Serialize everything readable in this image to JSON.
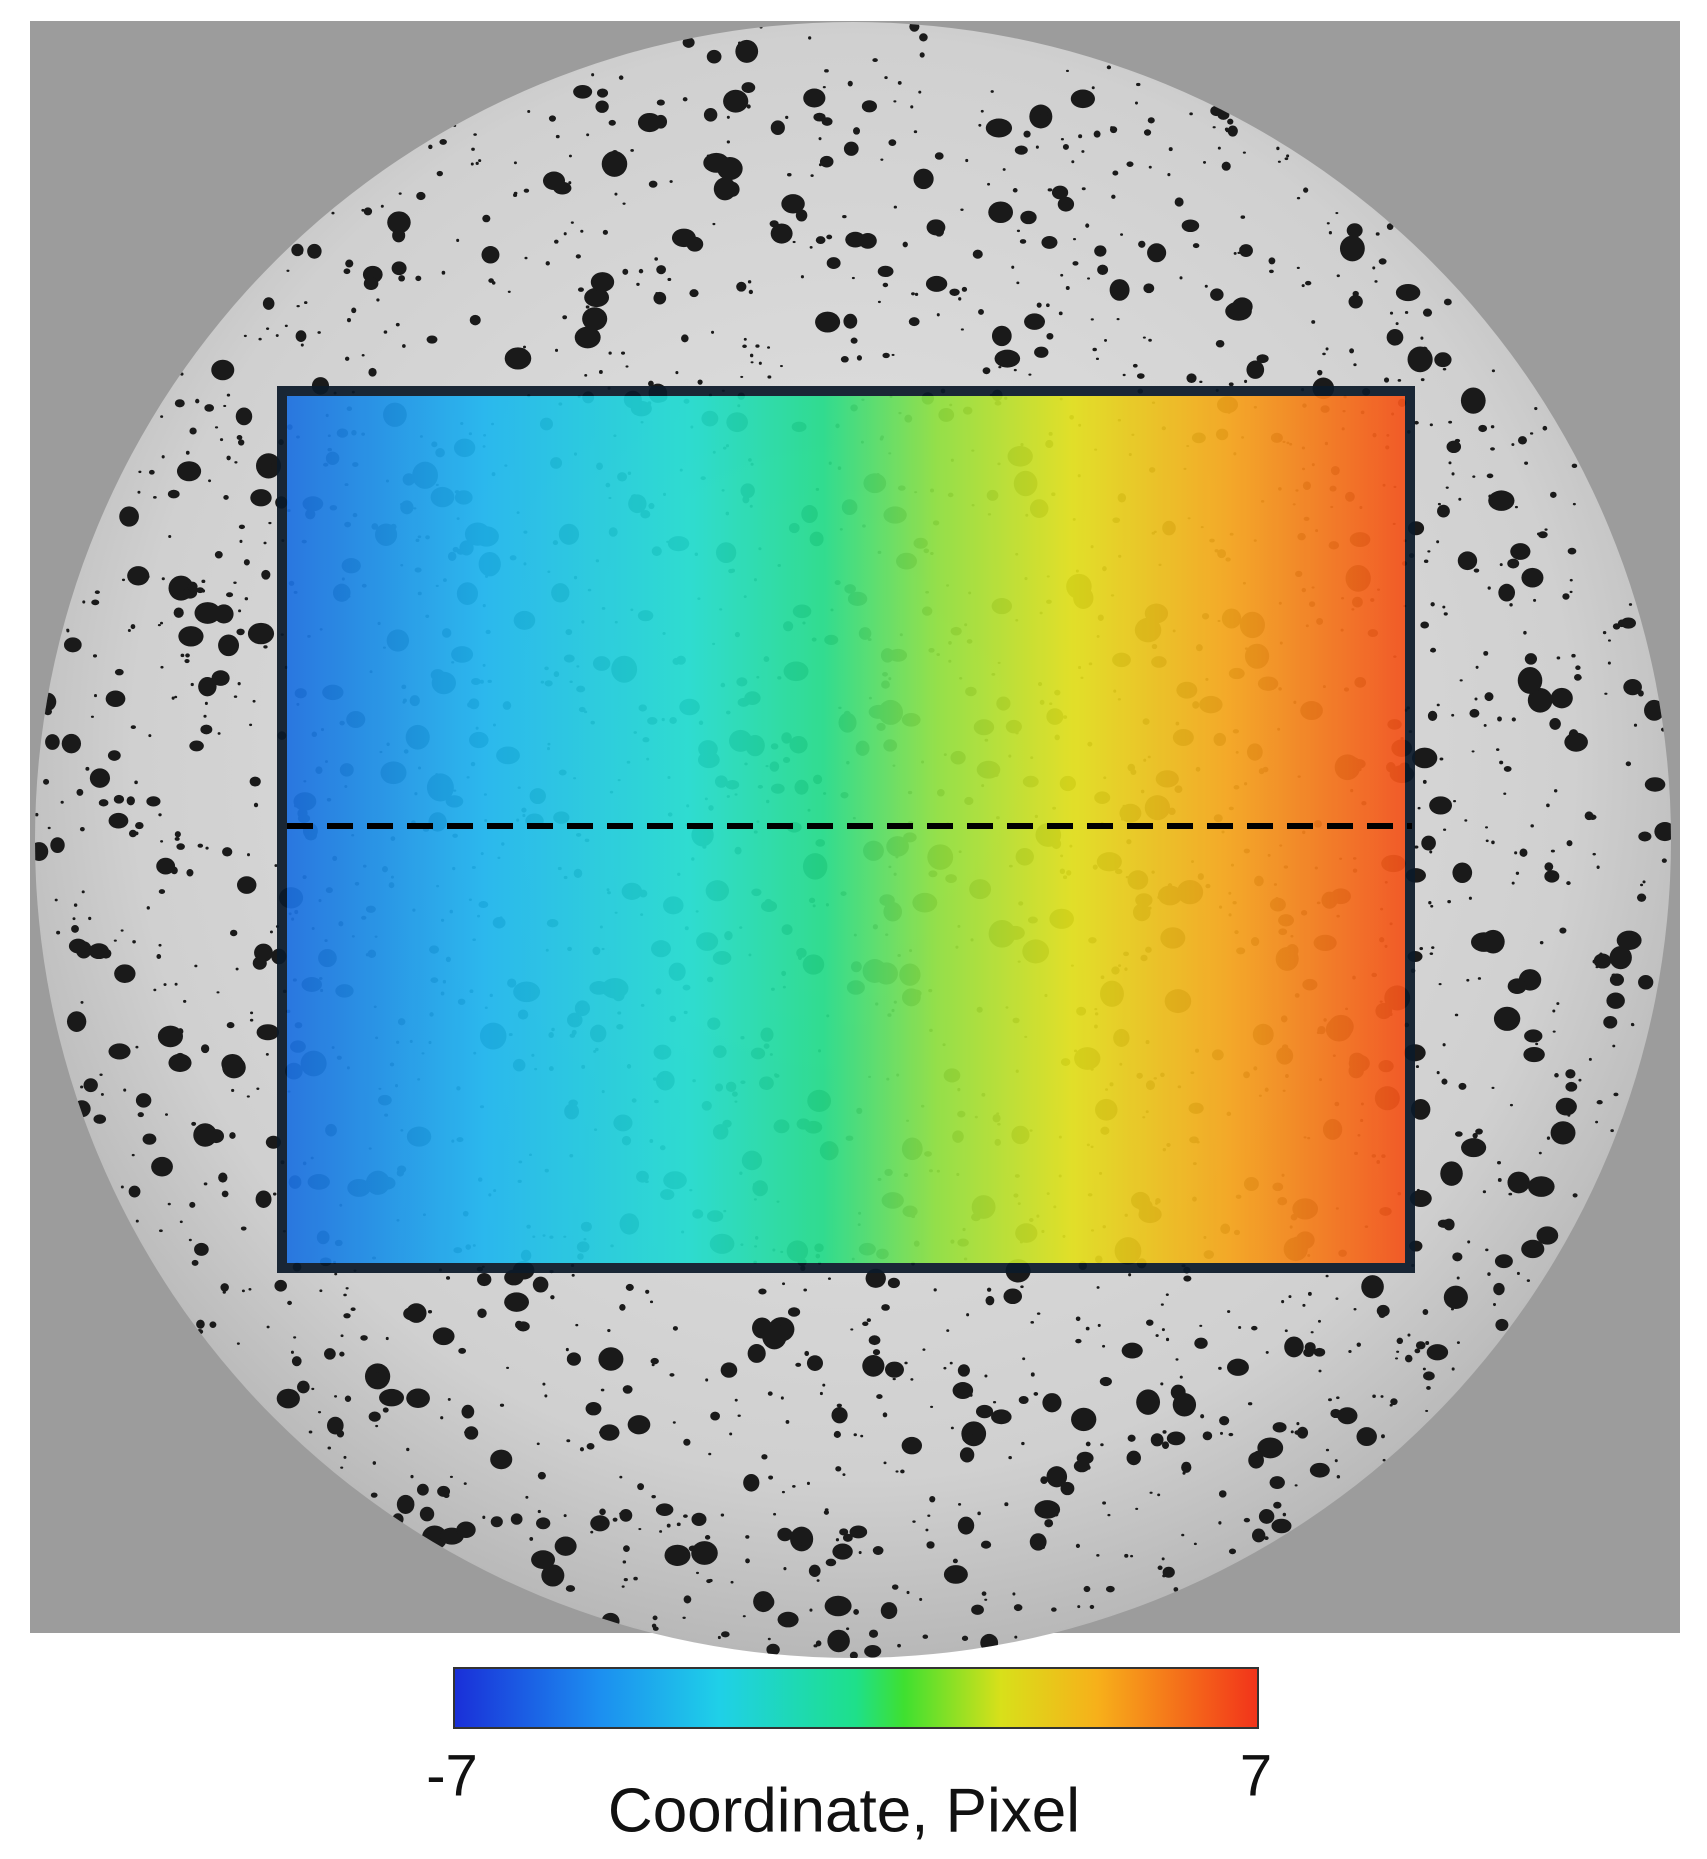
{
  "colorbar": {
    "min": -7,
    "max": 7,
    "label": "Coordinate, Pixel"
  }
}
